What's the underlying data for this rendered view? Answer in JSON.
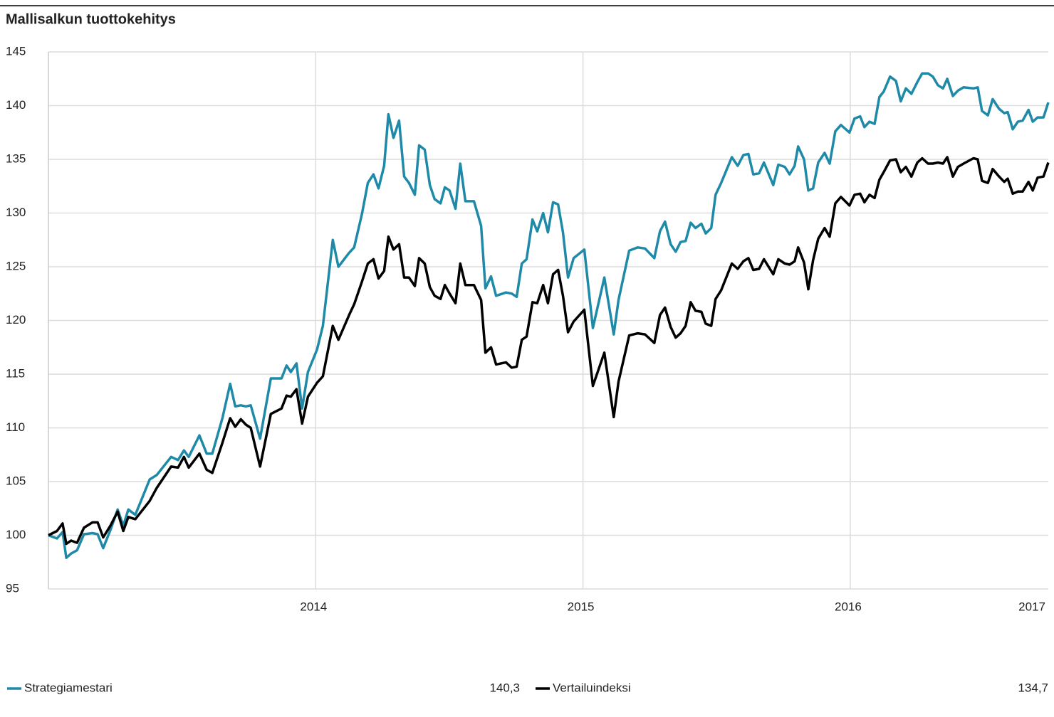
{
  "chart_data": {
    "type": "line",
    "title": "Mallisalkun tuottokehitys",
    "xlim": [
      2013,
      2016.741
    ],
    "xticks": [
      2014,
      2015,
      2016,
      2017
    ],
    "ylim": [
      95,
      145
    ],
    "yticks": [
      95,
      100,
      105,
      110,
      115,
      120,
      125,
      130,
      135,
      140,
      145
    ],
    "grid": true,
    "x": [
      2013,
      2013.032,
      2013.053,
      2013.067,
      2013.085,
      2013.107,
      2013.133,
      2013.165,
      2013.184,
      2013.205,
      2013.232,
      2013.259,
      2013.28,
      2013.299,
      2013.325,
      2013.379,
      2013.405,
      2013.459,
      2013.485,
      2013.507,
      2013.525,
      2013.565,
      2013.592,
      2013.613,
      2013.651,
      2013.68,
      2013.699,
      2013.72,
      2013.739,
      2013.757,
      2013.792,
      2013.832,
      2013.872,
      2013.891,
      2013.907,
      2013.928,
      2013.949,
      2013.971,
      2014.005,
      2014.027,
      2014.064,
      2014.085,
      2014.125,
      2014.144,
      2014.173,
      2014.195,
      2014.216,
      2014.235,
      2014.256,
      2014.272,
      2014.291,
      2014.312,
      2014.331,
      2014.349,
      2014.371,
      2014.387,
      2014.408,
      2014.427,
      2014.445,
      2014.467,
      2014.483,
      2014.501,
      2014.523,
      2014.541,
      2014.56,
      2014.592,
      2014.619,
      2014.635,
      2014.656,
      2014.675,
      2014.712,
      2014.733,
      2014.752,
      2014.771,
      2014.789,
      2014.811,
      2014.829,
      2014.851,
      2014.869,
      2014.888,
      2014.907,
      2014.925,
      2014.944,
      2014.965,
      2015.005,
      2015.037,
      2015.08,
      2015.115,
      2015.133,
      2015.173,
      2015.205,
      2015.232,
      2015.267,
      2015.288,
      2015.307,
      2015.328,
      2015.347,
      2015.365,
      2015.384,
      2015.403,
      2015.421,
      2015.443,
      2015.459,
      2015.48,
      2015.496,
      2015.517,
      2015.557,
      2015.579,
      2015.6,
      2015.619,
      2015.637,
      2015.659,
      2015.677,
      2015.712,
      2015.731,
      2015.755,
      2015.773,
      2015.792,
      2015.805,
      2015.827,
      2015.843,
      2015.861,
      2015.88,
      2015.904,
      2015.923,
      2015.944,
      2015.965,
      2015.997,
      2016.016,
      2016.037,
      2016.053,
      2016.072,
      2016.091,
      2016.109,
      2016.125,
      2016.149,
      2016.171,
      2016.189,
      2016.208,
      2016.229,
      2016.251,
      2016.269,
      2016.291,
      2016.309,
      2016.328,
      2016.347,
      2016.363,
      2016.384,
      2016.403,
      2016.424,
      2016.461,
      2016.477,
      2016.493,
      2016.515,
      2016.533,
      2016.557,
      2016.576,
      2016.589,
      2016.608,
      2016.627,
      2016.645,
      2016.667,
      2016.683,
      2016.701,
      2016.723,
      2016.741
    ],
    "series": [
      {
        "name": "Strategiamestari",
        "color": "#1f8aa8",
        "end_label": "140,3",
        "values": [
          100,
          99.7,
          100.3,
          97.9,
          98.3,
          98.6,
          100.1,
          100.2,
          100.1,
          98.8,
          100.5,
          102.4,
          100.9,
          102.4,
          101.9,
          105.2,
          105.6,
          107.3,
          107.0,
          107.9,
          107.3,
          109.3,
          107.6,
          107.6,
          110.9,
          114.1,
          112.0,
          112.1,
          112.0,
          112.1,
          109.0,
          114.6,
          114.6,
          115.8,
          115.2,
          116.0,
          111.8,
          115.2,
          117.3,
          119.5,
          127.5,
          125.0,
          126.3,
          126.8,
          129.9,
          132.8,
          133.6,
          132.3,
          134.4,
          139.2,
          137.0,
          138.6,
          133.4,
          132.8,
          131.7,
          136.3,
          135.9,
          132.6,
          131.3,
          130.9,
          132.4,
          132.1,
          130.4,
          134.6,
          131.1,
          131.1,
          128.8,
          123.0,
          124.1,
          122.3,
          122.6,
          122.5,
          122.2,
          125.3,
          125.7,
          129.4,
          128.3,
          130.0,
          128.2,
          131.0,
          130.8,
          128.2,
          124.0,
          125.8,
          126.6,
          119.3,
          124.0,
          118.7,
          121.9,
          126.5,
          126.8,
          126.7,
          125.8,
          128.3,
          129.2,
          127.1,
          126.4,
          127.3,
          127.4,
          129.1,
          128.6,
          129.0,
          128.1,
          128.6,
          131.7,
          132.8,
          135.2,
          134.4,
          135.4,
          135.5,
          133.6,
          133.7,
          134.7,
          132.6,
          134.5,
          134.3,
          133.6,
          134.4,
          136.2,
          135.0,
          132.1,
          132.3,
          134.7,
          135.6,
          134.6,
          137.6,
          138.2,
          137.5,
          138.8,
          139.0,
          138.0,
          138.5,
          138.3,
          140.8,
          141.3,
          142.7,
          142.3,
          140.4,
          141.6,
          141.1,
          142.2,
          143.0,
          143.0,
          142.7,
          141.9,
          141.6,
          142.5,
          140.9,
          141.4,
          141.7,
          141.6,
          141.7,
          139.5,
          139.1,
          140.6,
          139.7,
          139.3,
          139.4,
          137.8,
          138.5,
          138.6,
          139.6,
          138.5,
          138.9,
          138.9,
          140.3
        ]
      },
      {
        "name": "Vertailuindeksi",
        "color": "#000000",
        "end_label": "134,7",
        "values": [
          100,
          100.4,
          101.1,
          99.2,
          99.5,
          99.3,
          100.7,
          101.2,
          101.2,
          99.8,
          100.9,
          102.2,
          100.4,
          101.7,
          101.5,
          103.2,
          104.4,
          106.4,
          106.3,
          107.3,
          106.3,
          107.6,
          106.1,
          105.8,
          108.6,
          110.9,
          110.1,
          110.8,
          110.3,
          110.0,
          106.4,
          111.3,
          111.8,
          113.0,
          112.9,
          113.6,
          110.4,
          112.9,
          114.2,
          114.8,
          119.5,
          118.2,
          120.5,
          121.5,
          123.6,
          125.3,
          125.7,
          123.9,
          124.6,
          127.8,
          126.6,
          127.1,
          124.0,
          124.0,
          123.2,
          125.8,
          125.3,
          123.1,
          122.3,
          122.0,
          123.3,
          122.5,
          121.6,
          125.3,
          123.3,
          123.3,
          121.9,
          117.0,
          117.5,
          115.9,
          116.1,
          115.6,
          115.7,
          118.2,
          118.5,
          121.7,
          121.6,
          123.3,
          121.6,
          124.3,
          124.7,
          122.3,
          118.9,
          119.9,
          121.0,
          113.9,
          117.0,
          111.0,
          114.3,
          118.6,
          118.8,
          118.7,
          117.9,
          120.5,
          121.2,
          119.4,
          118.4,
          118.8,
          119.5,
          121.7,
          120.9,
          120.8,
          119.7,
          119.5,
          122.0,
          122.8,
          125.3,
          124.8,
          125.5,
          125.8,
          124.7,
          124.8,
          125.7,
          124.3,
          125.7,
          125.3,
          125.2,
          125.5,
          126.8,
          125.4,
          122.9,
          125.6,
          127.6,
          128.6,
          127.8,
          130.9,
          131.5,
          130.7,
          131.7,
          131.8,
          131.0,
          131.7,
          131.4,
          133.1,
          133.8,
          134.9,
          135.0,
          133.8,
          134.3,
          133.4,
          134.7,
          135.1,
          134.6,
          134.6,
          134.7,
          134.6,
          135.2,
          133.4,
          134.3,
          134.6,
          135.1,
          135.0,
          133.0,
          132.8,
          134.1,
          133.4,
          132.9,
          133.2,
          131.8,
          132.0,
          132.0,
          132.9,
          132.1,
          133.3,
          133.4,
          134.7
        ]
      }
    ]
  }
}
